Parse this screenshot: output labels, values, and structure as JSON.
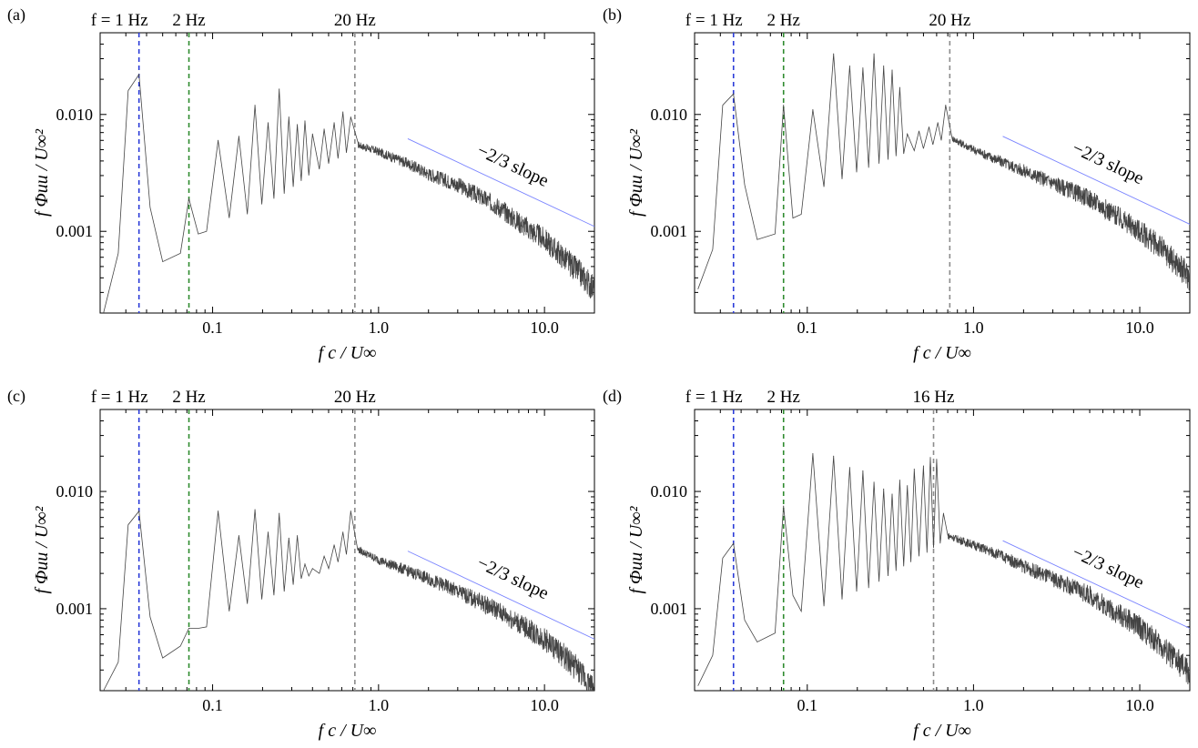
{
  "figure": {
    "x_axis_label": "f c / U∞",
    "y_axis_label": "f Φuu / U∞²",
    "slope_label": "−2/3 slope"
  },
  "chart_data": [
    {
      "panel": "(a)",
      "type": "line",
      "xscale": "log",
      "yscale": "log",
      "xlim": [
        0.021,
        20
      ],
      "ylim": [
        0.0002,
        0.05
      ],
      "xticks": [
        "0.1",
        "1.0",
        "10.0"
      ],
      "yticks": [
        "0.001",
        "0.010"
      ],
      "xlabel": "f c / U∞",
      "ylabel": "f Φuu / U∞²",
      "grid": false,
      "markers": [
        {
          "label": "f = 1 Hz",
          "x": 0.036,
          "color": "#2a3bd8"
        },
        {
          "label": "2 Hz",
          "x": 0.072,
          "color": "#2e8b2e"
        },
        {
          "label": "20 Hz",
          "x": 0.72,
          "color": "#8c8c8c"
        }
      ],
      "reference_line": {
        "label": "−2/3 slope",
        "x": [
          1.5,
          20
        ],
        "y": [
          0.0062,
          0.0011
        ],
        "color": "#7a84ff"
      },
      "series": [
        {
          "color": "#444444",
          "peaks": [
            {
              "x": 0.036,
              "y": 0.022
            },
            {
              "x": 0.072,
              "y": 0.0019
            },
            {
              "x": 0.108,
              "y": 0.006
            },
            {
              "x": 0.144,
              "y": 0.0065
            },
            {
              "x": 0.18,
              "y": 0.012
            },
            {
              "x": 0.216,
              "y": 0.0085
            },
            {
              "x": 0.252,
              "y": 0.0165
            },
            {
              "x": 0.288,
              "y": 0.0095
            },
            {
              "x": 0.324,
              "y": 0.0082
            },
            {
              "x": 0.36,
              "y": 0.0088
            },
            {
              "x": 0.4,
              "y": 0.0068
            },
            {
              "x": 0.47,
              "y": 0.0075
            },
            {
              "x": 0.54,
              "y": 0.0085
            },
            {
              "x": 0.61,
              "y": 0.0105
            },
            {
              "x": 0.68,
              "y": 0.0095
            }
          ],
          "troughs": [
            {
              "x": 0.022,
              "y": 0.0002
            },
            {
              "x": 0.027,
              "y": 0.00065
            },
            {
              "x": 0.031,
              "y": 0.016
            },
            {
              "x": 0.042,
              "y": 0.0016
            },
            {
              "x": 0.05,
              "y": 0.00055
            },
            {
              "x": 0.064,
              "y": 0.00065
            },
            {
              "x": 0.082,
              "y": 0.00095
            },
            {
              "x": 0.092,
              "y": 0.001
            },
            {
              "x": 0.126,
              "y": 0.0013
            },
            {
              "x": 0.162,
              "y": 0.0014
            },
            {
              "x": 0.198,
              "y": 0.0017
            },
            {
              "x": 0.234,
              "y": 0.0019
            },
            {
              "x": 0.27,
              "y": 0.0021
            },
            {
              "x": 0.306,
              "y": 0.0024
            },
            {
              "x": 0.342,
              "y": 0.0027
            },
            {
              "x": 0.38,
              "y": 0.003
            },
            {
              "x": 0.44,
              "y": 0.0034
            },
            {
              "x": 0.5,
              "y": 0.0038
            },
            {
              "x": 0.57,
              "y": 0.0042
            },
            {
              "x": 0.64,
              "y": 0.0047
            }
          ],
          "decay": [
            {
              "x": 0.75,
              "y": 0.0055
            },
            {
              "x": 1.0,
              "y": 0.0048
            },
            {
              "x": 1.5,
              "y": 0.0038
            },
            {
              "x": 2.0,
              "y": 0.0031
            },
            {
              "x": 3.0,
              "y": 0.0025
            },
            {
              "x": 5.0,
              "y": 0.0017
            },
            {
              "x": 7.0,
              "y": 0.0012
            },
            {
              "x": 10.0,
              "y": 0.00085
            },
            {
              "x": 13.0,
              "y": 0.0006
            },
            {
              "x": 16.0,
              "y": 0.00045
            },
            {
              "x": 20.0,
              "y": 0.00032
            }
          ]
        }
      ]
    },
    {
      "panel": "(b)",
      "type": "line",
      "xscale": "log",
      "yscale": "log",
      "xlim": [
        0.021,
        20
      ],
      "ylim": [
        0.0002,
        0.05
      ],
      "xticks": [
        "0.1",
        "1.0",
        "10.0"
      ],
      "yticks": [
        "0.001",
        "0.010"
      ],
      "xlabel": "f c / U∞",
      "ylabel": "f Φuu / U∞²",
      "grid": false,
      "markers": [
        {
          "label": "f = 1 Hz",
          "x": 0.036,
          "color": "#2a3bd8"
        },
        {
          "label": "2 Hz",
          "x": 0.072,
          "color": "#2e8b2e"
        },
        {
          "label": "20 Hz",
          "x": 0.72,
          "color": "#8c8c8c"
        }
      ],
      "reference_line": {
        "label": "−2/3 slope",
        "x": [
          1.5,
          20
        ],
        "y": [
          0.0065,
          0.00115
        ],
        "color": "#7a84ff"
      },
      "series": [
        {
          "color": "#444444",
          "peaks": [
            {
              "x": 0.036,
              "y": 0.015
            },
            {
              "x": 0.072,
              "y": 0.012
            },
            {
              "x": 0.108,
              "y": 0.011
            },
            {
              "x": 0.144,
              "y": 0.033
            },
            {
              "x": 0.18,
              "y": 0.026
            },
            {
              "x": 0.216,
              "y": 0.025
            },
            {
              "x": 0.252,
              "y": 0.033
            },
            {
              "x": 0.288,
              "y": 0.026
            },
            {
              "x": 0.324,
              "y": 0.024
            },
            {
              "x": 0.36,
              "y": 0.017
            },
            {
              "x": 0.4,
              "y": 0.0068
            },
            {
              "x": 0.47,
              "y": 0.0072
            },
            {
              "x": 0.54,
              "y": 0.0078
            },
            {
              "x": 0.61,
              "y": 0.0085
            },
            {
              "x": 0.68,
              "y": 0.012
            }
          ],
          "troughs": [
            {
              "x": 0.022,
              "y": 0.00032
            },
            {
              "x": 0.027,
              "y": 0.0007
            },
            {
              "x": 0.031,
              "y": 0.012
            },
            {
              "x": 0.042,
              "y": 0.0025
            },
            {
              "x": 0.05,
              "y": 0.00085
            },
            {
              "x": 0.064,
              "y": 0.00095
            },
            {
              "x": 0.082,
              "y": 0.0013
            },
            {
              "x": 0.092,
              "y": 0.0014
            },
            {
              "x": 0.126,
              "y": 0.0024
            },
            {
              "x": 0.162,
              "y": 0.0028
            },
            {
              "x": 0.198,
              "y": 0.0032
            },
            {
              "x": 0.234,
              "y": 0.0035
            },
            {
              "x": 0.27,
              "y": 0.0038
            },
            {
              "x": 0.306,
              "y": 0.0041
            },
            {
              "x": 0.342,
              "y": 0.0044
            },
            {
              "x": 0.38,
              "y": 0.0046
            },
            {
              "x": 0.44,
              "y": 0.0049
            },
            {
              "x": 0.5,
              "y": 0.0051
            },
            {
              "x": 0.57,
              "y": 0.0055
            },
            {
              "x": 0.64,
              "y": 0.006
            }
          ],
          "decay": [
            {
              "x": 0.75,
              "y": 0.0062
            },
            {
              "x": 1.0,
              "y": 0.005
            },
            {
              "x": 1.5,
              "y": 0.0039
            },
            {
              "x": 2.0,
              "y": 0.0033
            },
            {
              "x": 3.0,
              "y": 0.0026
            },
            {
              "x": 5.0,
              "y": 0.0019
            },
            {
              "x": 7.0,
              "y": 0.0014
            },
            {
              "x": 10.0,
              "y": 0.001
            },
            {
              "x": 13.0,
              "y": 0.00075
            },
            {
              "x": 16.0,
              "y": 0.00056
            },
            {
              "x": 20.0,
              "y": 0.0004
            }
          ]
        }
      ]
    },
    {
      "panel": "(c)",
      "type": "line",
      "xscale": "log",
      "yscale": "log",
      "xlim": [
        0.021,
        20
      ],
      "ylim": [
        0.0002,
        0.05
      ],
      "xticks": [
        "0.1",
        "1.0",
        "10.0"
      ],
      "yticks": [
        "0.001",
        "0.010"
      ],
      "xlabel": "f c / U∞",
      "ylabel": "f Φuu / U∞²",
      "grid": false,
      "markers": [
        {
          "label": "f = 1 Hz",
          "x": 0.036,
          "color": "#2a3bd8"
        },
        {
          "label": "2 Hz",
          "x": 0.072,
          "color": "#2e8b2e"
        },
        {
          "label": "20 Hz",
          "x": 0.72,
          "color": "#8c8c8c"
        }
      ],
      "reference_line": {
        "label": "−2/3 slope",
        "x": [
          1.5,
          20
        ],
        "y": [
          0.0031,
          0.00055
        ],
        "color": "#7a84ff"
      },
      "series": [
        {
          "color": "#444444",
          "peaks": [
            {
              "x": 0.036,
              "y": 0.0068
            },
            {
              "x": 0.072,
              "y": 0.00068
            },
            {
              "x": 0.108,
              "y": 0.0068
            },
            {
              "x": 0.144,
              "y": 0.0042
            },
            {
              "x": 0.18,
              "y": 0.007
            },
            {
              "x": 0.216,
              "y": 0.0045
            },
            {
              "x": 0.252,
              "y": 0.0065
            },
            {
              "x": 0.288,
              "y": 0.004
            },
            {
              "x": 0.324,
              "y": 0.0042
            },
            {
              "x": 0.36,
              "y": 0.0024
            },
            {
              "x": 0.4,
              "y": 0.0022
            },
            {
              "x": 0.47,
              "y": 0.0028
            },
            {
              "x": 0.54,
              "y": 0.0035
            },
            {
              "x": 0.61,
              "y": 0.0045
            },
            {
              "x": 0.68,
              "y": 0.0068
            }
          ],
          "troughs": [
            {
              "x": 0.022,
              "y": 0.0002
            },
            {
              "x": 0.027,
              "y": 0.00035
            },
            {
              "x": 0.031,
              "y": 0.0052
            },
            {
              "x": 0.042,
              "y": 0.00085
            },
            {
              "x": 0.05,
              "y": 0.00038
            },
            {
              "x": 0.064,
              "y": 0.00048
            },
            {
              "x": 0.082,
              "y": 0.00068
            },
            {
              "x": 0.092,
              "y": 0.0007
            },
            {
              "x": 0.126,
              "y": 0.00095
            },
            {
              "x": 0.162,
              "y": 0.0011
            },
            {
              "x": 0.198,
              "y": 0.0012
            },
            {
              "x": 0.234,
              "y": 0.0013
            },
            {
              "x": 0.27,
              "y": 0.0014
            },
            {
              "x": 0.306,
              "y": 0.0016
            },
            {
              "x": 0.342,
              "y": 0.0018
            },
            {
              "x": 0.38,
              "y": 0.0019
            },
            {
              "x": 0.44,
              "y": 0.002
            },
            {
              "x": 0.5,
              "y": 0.0022
            },
            {
              "x": 0.57,
              "y": 0.0025
            },
            {
              "x": 0.64,
              "y": 0.0029
            }
          ],
          "decay": [
            {
              "x": 0.75,
              "y": 0.0032
            },
            {
              "x": 1.0,
              "y": 0.0026
            },
            {
              "x": 1.5,
              "y": 0.0021
            },
            {
              "x": 2.0,
              "y": 0.0018
            },
            {
              "x": 3.0,
              "y": 0.0014
            },
            {
              "x": 5.0,
              "y": 0.001
            },
            {
              "x": 7.0,
              "y": 0.00075
            },
            {
              "x": 10.0,
              "y": 0.00055
            },
            {
              "x": 13.0,
              "y": 0.0004
            },
            {
              "x": 16.0,
              "y": 0.0003
            },
            {
              "x": 20.0,
              "y": 0.0002
            }
          ]
        }
      ]
    },
    {
      "panel": "(d)",
      "type": "line",
      "xscale": "log",
      "yscale": "log",
      "xlim": [
        0.021,
        20
      ],
      "ylim": [
        0.0002,
        0.05
      ],
      "xticks": [
        "0.1",
        "1.0",
        "10.0"
      ],
      "yticks": [
        "0.001",
        "0.010"
      ],
      "xlabel": "f c / U∞",
      "ylabel": "f Φuu / U∞²",
      "grid": false,
      "markers": [
        {
          "label": "f = 1 Hz",
          "x": 0.036,
          "color": "#2a3bd8"
        },
        {
          "label": "2 Hz",
          "x": 0.072,
          "color": "#2e8b2e"
        },
        {
          "label": "16 Hz",
          "x": 0.575,
          "color": "#8c8c8c"
        }
      ],
      "reference_line": {
        "label": "−2/3 slope",
        "x": [
          1.5,
          20
        ],
        "y": [
          0.0038,
          0.00068
        ],
        "color": "#7a84ff"
      },
      "series": [
        {
          "color": "#444444",
          "peaks": [
            {
              "x": 0.036,
              "y": 0.0036
            },
            {
              "x": 0.072,
              "y": 0.0075
            },
            {
              "x": 0.108,
              "y": 0.021
            },
            {
              "x": 0.144,
              "y": 0.02
            },
            {
              "x": 0.18,
              "y": 0.016
            },
            {
              "x": 0.216,
              "y": 0.015
            },
            {
              "x": 0.252,
              "y": 0.012
            },
            {
              "x": 0.288,
              "y": 0.0105
            },
            {
              "x": 0.324,
              "y": 0.0095
            },
            {
              "x": 0.36,
              "y": 0.0125
            },
            {
              "x": 0.4,
              "y": 0.0112
            },
            {
              "x": 0.44,
              "y": 0.0155
            },
            {
              "x": 0.5,
              "y": 0.0165
            },
            {
              "x": 0.55,
              "y": 0.0195
            },
            {
              "x": 0.6,
              "y": 0.0188
            },
            {
              "x": 0.66,
              "y": 0.0065
            }
          ],
          "troughs": [
            {
              "x": 0.022,
              "y": 0.00022
            },
            {
              "x": 0.027,
              "y": 0.0004
            },
            {
              "x": 0.031,
              "y": 0.0027
            },
            {
              "x": 0.042,
              "y": 0.0008
            },
            {
              "x": 0.05,
              "y": 0.00052
            },
            {
              "x": 0.064,
              "y": 0.00062
            },
            {
              "x": 0.082,
              "y": 0.0013
            },
            {
              "x": 0.092,
              "y": 0.00095
            },
            {
              "x": 0.126,
              "y": 0.00105
            },
            {
              "x": 0.162,
              "y": 0.0012
            },
            {
              "x": 0.198,
              "y": 0.0014
            },
            {
              "x": 0.234,
              "y": 0.0015
            },
            {
              "x": 0.27,
              "y": 0.0017
            },
            {
              "x": 0.306,
              "y": 0.0019
            },
            {
              "x": 0.342,
              "y": 0.0021
            },
            {
              "x": 0.38,
              "y": 0.0023
            },
            {
              "x": 0.42,
              "y": 0.0025
            },
            {
              "x": 0.47,
              "y": 0.0028
            },
            {
              "x": 0.525,
              "y": 0.003
            },
            {
              "x": 0.575,
              "y": 0.0033
            },
            {
              "x": 0.63,
              "y": 0.0036
            }
          ],
          "decay": [
            {
              "x": 0.7,
              "y": 0.0042
            },
            {
              "x": 1.0,
              "y": 0.0035
            },
            {
              "x": 1.5,
              "y": 0.0028
            },
            {
              "x": 2.0,
              "y": 0.0023
            },
            {
              "x": 3.0,
              "y": 0.0018
            },
            {
              "x": 5.0,
              "y": 0.0013
            },
            {
              "x": 7.0,
              "y": 0.00095
            },
            {
              "x": 10.0,
              "y": 0.0007
            },
            {
              "x": 13.0,
              "y": 0.0005
            },
            {
              "x": 16.0,
              "y": 0.00038
            },
            {
              "x": 20.0,
              "y": 0.00028
            }
          ]
        }
      ]
    }
  ]
}
